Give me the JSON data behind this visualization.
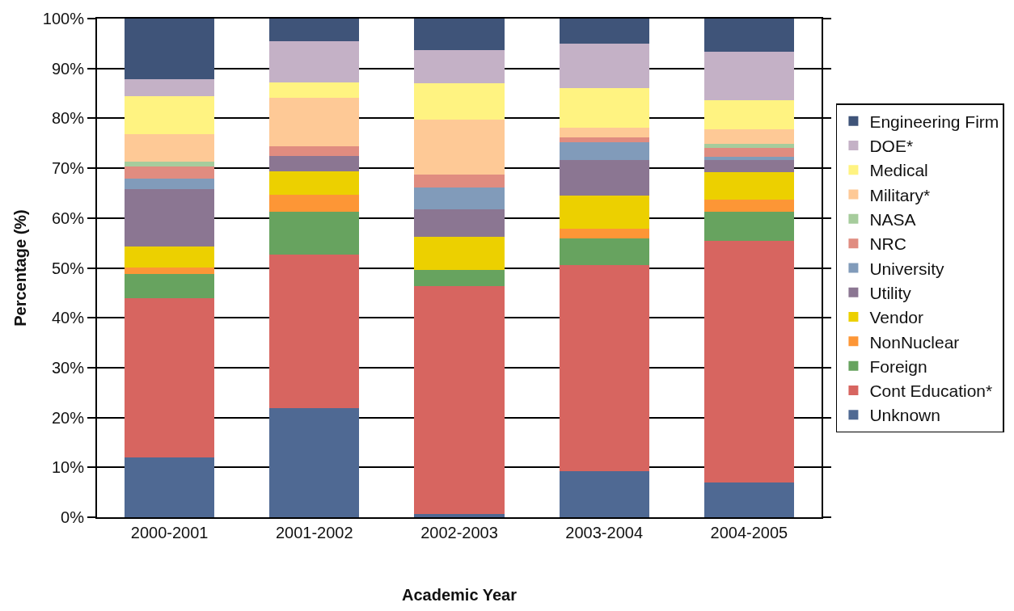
{
  "chart_data": {
    "type": "bar",
    "stacked": true,
    "xlabel": "Academic Year",
    "ylabel": "Percentage (%)",
    "categories": [
      "2000-2001",
      "2001-2002",
      "2002-2003",
      "2003-2004",
      "2004-2005"
    ],
    "ylim": [
      0,
      100
    ],
    "yticks": [
      {
        "value": 0,
        "label": "0%"
      },
      {
        "value": 10,
        "label": "10%"
      },
      {
        "value": 20,
        "label": "20%"
      },
      {
        "value": 30,
        "label": "30%"
      },
      {
        "value": 40,
        "label": "40%"
      },
      {
        "value": 50,
        "label": "50%"
      },
      {
        "value": 60,
        "label": "60%"
      },
      {
        "value": 70,
        "label": "70%"
      },
      {
        "value": 80,
        "label": "80%"
      },
      {
        "value": 90,
        "label": "90%"
      },
      {
        "value": 100,
        "label": "100%"
      }
    ],
    "grid": "y",
    "legend": "right",
    "series": [
      {
        "name": "Unknown",
        "color": "#4f6993",
        "values": [
          12,
          21.9,
          0.6,
          9.3,
          7.0
        ]
      },
      {
        "name": "Cont Education*",
        "color": "#d76560",
        "values": [
          32,
          30.7,
          45.7,
          41.2,
          48.5
        ]
      },
      {
        "name": "Foreign",
        "color": "#67a35f",
        "values": [
          4.8,
          8.7,
          3.3,
          5.4,
          5.7
        ]
      },
      {
        "name": "NonNuclear",
        "color": "#fd9636",
        "values": [
          1.3,
          3.3,
          0,
          2.0,
          2.5
        ]
      },
      {
        "name": "Vendor",
        "color": "#ecd000",
        "values": [
          4.2,
          4.7,
          6.7,
          6.6,
          5.5
        ]
      },
      {
        "name": "Utility",
        "color": "#8b7692",
        "values": [
          11.5,
          3.1,
          5.4,
          7.2,
          2.5
        ]
      },
      {
        "name": "University",
        "color": "#819bba",
        "values": [
          2.1,
          0,
          4.5,
          3.5,
          0.6
        ]
      },
      {
        "name": "NRC",
        "color": "#e08c80",
        "values": [
          2.5,
          2.0,
          2.5,
          0.9,
          1.7
        ]
      },
      {
        "name": "NASA",
        "color": "#a6cc9c",
        "values": [
          0.9,
          0,
          0,
          0,
          0.8
        ]
      },
      {
        "name": "Military*",
        "color": "#fec996",
        "values": [
          5.6,
          9.7,
          11.1,
          2.1,
          3.0
        ]
      },
      {
        "name": "Medical",
        "color": "#fff381",
        "values": [
          7.5,
          3.1,
          7.2,
          7.9,
          5.8
        ]
      },
      {
        "name": "DOE*",
        "color": "#c4b1c6",
        "values": [
          3.5,
          8.2,
          6.7,
          8.8,
          9.7
        ]
      },
      {
        "name": "Engineering Firm",
        "color": "#3f5479",
        "values": [
          12.1,
          4.6,
          6.3,
          5.1,
          6.7
        ]
      }
    ]
  }
}
